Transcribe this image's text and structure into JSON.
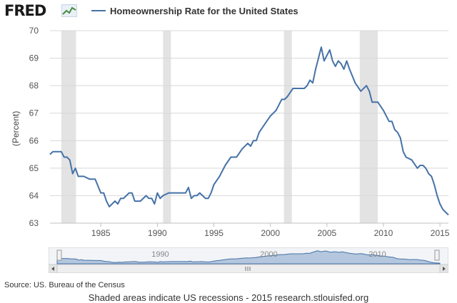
{
  "header": {
    "logo": "FRED",
    "legend_label": "Homeownership Rate for the United States"
  },
  "colors": {
    "series": "#4572a7",
    "recession": "#e3e3e3",
    "grid": "#d8d8d8",
    "navigator_fill": "#9fb8d6"
  },
  "icons": {
    "logo_badge": "line-chart-icon",
    "scroll_left": "left-arrow-icon",
    "scroll_right": "right-arrow-icon",
    "scroll_grip": "grip-icon"
  },
  "footer": {
    "source": "Source: US. Bureau of the Census",
    "note": "Shaded areas indicate US recessions - 2015 research.stlouisfed.org"
  },
  "navigator": {
    "labels": [
      "1990",
      "2000",
      "2010"
    ]
  },
  "chart_data": {
    "type": "line",
    "title": "Homeownership Rate for the United States",
    "ylabel": "(Percent)",
    "xlabel": "",
    "xlim": [
      1980.5,
      2015.75
    ],
    "ylim": [
      63,
      70
    ],
    "x_ticks": [
      1985,
      1990,
      1995,
      2000,
      2005,
      2010,
      2015
    ],
    "y_ticks": [
      63,
      64,
      65,
      66,
      67,
      68,
      69,
      70
    ],
    "grid": "horizontal",
    "legend_position": "top",
    "recessions": [
      [
        1980.0,
        1980.5
      ],
      [
        1981.5,
        1982.8
      ],
      [
        1990.5,
        1991.2
      ],
      [
        2001.2,
        2001.9
      ],
      [
        2007.9,
        2009.5
      ]
    ],
    "series": [
      {
        "name": "Homeownership Rate for the United States",
        "x": [
          1980.5,
          1980.75,
          1981.0,
          1981.25,
          1981.5,
          1981.75,
          1982.0,
          1982.25,
          1982.5,
          1982.75,
          1983.0,
          1983.5,
          1984.0,
          1984.5,
          1985.0,
          1985.25,
          1985.5,
          1985.75,
          1986.0,
          1986.25,
          1986.5,
          1986.75,
          1987.0,
          1987.5,
          1987.75,
          1988.0,
          1988.25,
          1988.5,
          1989.0,
          1989.25,
          1989.5,
          1989.75,
          1990.0,
          1990.25,
          1990.5,
          1991.0,
          1991.5,
          1992.0,
          1992.5,
          1992.75,
          1993.0,
          1993.25,
          1993.5,
          1993.75,
          1994.0,
          1994.25,
          1994.5,
          1994.75,
          1995.0,
          1995.5,
          1996.0,
          1996.5,
          1997.0,
          1997.5,
          1998.0,
          1998.25,
          1998.5,
          1998.75,
          1999.0,
          1999.5,
          2000.0,
          2000.5,
          2001.0,
          2001.25,
          2001.5,
          2002.0,
          2002.5,
          2002.75,
          2003.0,
          2003.25,
          2003.5,
          2003.75,
          2004.0,
          2004.25,
          2004.5,
          2004.75,
          2005.0,
          2005.25,
          2005.5,
          2005.75,
          2006.0,
          2006.25,
          2006.5,
          2006.75,
          2007.0,
          2007.5,
          2008.0,
          2008.5,
          2008.75,
          2009.0,
          2009.5,
          2010.0,
          2010.25,
          2010.5,
          2010.75,
          2011.0,
          2011.25,
          2011.5,
          2011.75,
          2012.0,
          2012.5,
          2013.0,
          2013.25,
          2013.5,
          2013.75,
          2014.0,
          2014.25,
          2014.5,
          2014.75,
          2015.0,
          2015.25,
          2015.5,
          2015.75
        ],
        "values": [
          65.5,
          65.6,
          65.6,
          65.6,
          65.6,
          65.4,
          65.4,
          65.3,
          64.8,
          65.0,
          64.7,
          64.7,
          64.6,
          64.6,
          64.1,
          64.1,
          63.8,
          63.6,
          63.7,
          63.8,
          63.7,
          63.9,
          63.9,
          64.1,
          64.1,
          63.8,
          63.8,
          63.8,
          64.0,
          63.9,
          63.9,
          63.7,
          64.1,
          63.9,
          64.0,
          64.1,
          64.1,
          64.1,
          64.1,
          64.3,
          63.9,
          64.0,
          64.0,
          64.1,
          64.0,
          63.9,
          63.9,
          64.1,
          64.4,
          64.7,
          65.1,
          65.4,
          65.4,
          65.7,
          65.9,
          65.8,
          66.0,
          66.0,
          66.3,
          66.6,
          66.9,
          67.1,
          67.5,
          67.5,
          67.6,
          67.9,
          67.9,
          67.9,
          67.9,
          68.0,
          68.2,
          68.1,
          68.6,
          69.0,
          69.4,
          68.9,
          69.1,
          69.3,
          68.9,
          68.7,
          68.9,
          68.8,
          68.6,
          68.9,
          68.6,
          68.1,
          67.8,
          68.0,
          67.8,
          67.4,
          67.4,
          67.1,
          66.9,
          66.7,
          66.7,
          66.4,
          66.3,
          66.1,
          65.6,
          65.4,
          65.3,
          65.0,
          65.1,
          65.1,
          65.0,
          64.8,
          64.7,
          64.4,
          64.0,
          63.7,
          63.5,
          63.4,
          63.3
        ]
      }
    ]
  }
}
